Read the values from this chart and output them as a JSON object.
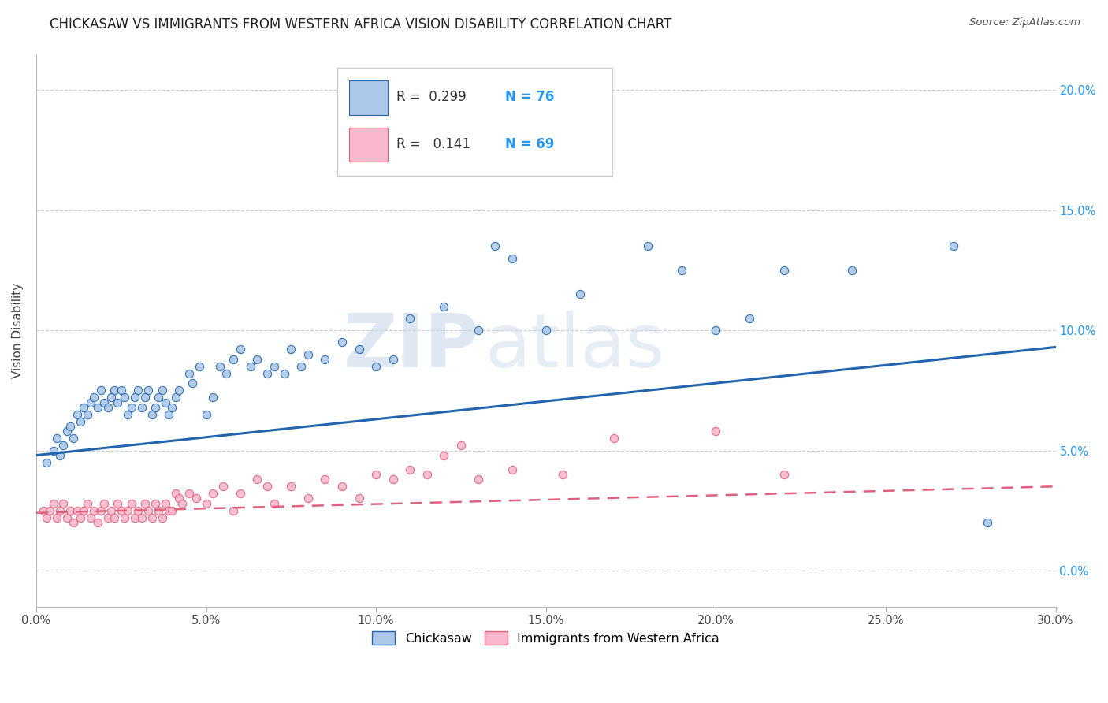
{
  "title": "CHICKASAW VS IMMIGRANTS FROM WESTERN AFRICA VISION DISABILITY CORRELATION CHART",
  "source": "Source: ZipAtlas.com",
  "ylabel": "Vision Disability",
  "xlabel_ticks": [
    "0.0%",
    "5.0%",
    "10.0%",
    "15.0%",
    "20.0%",
    "25.0%",
    "30.0%"
  ],
  "xlabel_vals": [
    0.0,
    0.05,
    0.1,
    0.15,
    0.2,
    0.25,
    0.3
  ],
  "ylabel_ticks": [
    "0.0%",
    "5.0%",
    "10.0%",
    "15.0%",
    "20.0%"
  ],
  "ylabel_vals": [
    0.0,
    0.05,
    0.1,
    0.15,
    0.2
  ],
  "xmin": 0.0,
  "xmax": 0.3,
  "ymin": -0.015,
  "ymax": 0.215,
  "legend1_label": "Chickasaw",
  "legend2_label": "Immigrants from Western Africa",
  "series1": {
    "name": "Chickasaw",
    "R": "0.299",
    "N": "76",
    "color": "#adc8e8",
    "line_color": "#2166ac",
    "scatter_x": [
      0.003,
      0.005,
      0.006,
      0.007,
      0.008,
      0.009,
      0.01,
      0.011,
      0.012,
      0.013,
      0.014,
      0.015,
      0.016,
      0.017,
      0.018,
      0.019,
      0.02,
      0.021,
      0.022,
      0.023,
      0.024,
      0.025,
      0.026,
      0.027,
      0.028,
      0.029,
      0.03,
      0.031,
      0.032,
      0.033,
      0.034,
      0.035,
      0.036,
      0.037,
      0.038,
      0.039,
      0.04,
      0.041,
      0.042,
      0.045,
      0.046,
      0.048,
      0.05,
      0.052,
      0.054,
      0.056,
      0.058,
      0.06,
      0.063,
      0.065,
      0.068,
      0.07,
      0.073,
      0.075,
      0.078,
      0.08,
      0.085,
      0.09,
      0.095,
      0.1,
      0.105,
      0.11,
      0.12,
      0.13,
      0.135,
      0.14,
      0.15,
      0.16,
      0.18,
      0.19,
      0.2,
      0.21,
      0.22,
      0.24,
      0.27,
      0.28
    ],
    "scatter_y": [
      0.045,
      0.05,
      0.055,
      0.048,
      0.052,
      0.058,
      0.06,
      0.055,
      0.065,
      0.062,
      0.068,
      0.065,
      0.07,
      0.072,
      0.068,
      0.075,
      0.07,
      0.068,
      0.072,
      0.075,
      0.07,
      0.075,
      0.072,
      0.065,
      0.068,
      0.072,
      0.075,
      0.068,
      0.072,
      0.075,
      0.065,
      0.068,
      0.072,
      0.075,
      0.07,
      0.065,
      0.068,
      0.072,
      0.075,
      0.082,
      0.078,
      0.085,
      0.065,
      0.072,
      0.085,
      0.082,
      0.088,
      0.092,
      0.085,
      0.088,
      0.082,
      0.085,
      0.082,
      0.092,
      0.085,
      0.09,
      0.088,
      0.095,
      0.092,
      0.085,
      0.088,
      0.105,
      0.11,
      0.1,
      0.135,
      0.13,
      0.1,
      0.115,
      0.135,
      0.125,
      0.1,
      0.105,
      0.125,
      0.125,
      0.135,
      0.02
    ],
    "trend_x": [
      0.0,
      0.3
    ],
    "trend_y": [
      0.048,
      0.093
    ]
  },
  "series2": {
    "name": "Immigrants from Western Africa",
    "R": "0.141",
    "N": "69",
    "color": "#f9b8cb",
    "line_color": "#e0607e",
    "scatter_x": [
      0.002,
      0.003,
      0.004,
      0.005,
      0.006,
      0.007,
      0.008,
      0.009,
      0.01,
      0.011,
      0.012,
      0.013,
      0.014,
      0.015,
      0.016,
      0.017,
      0.018,
      0.019,
      0.02,
      0.021,
      0.022,
      0.023,
      0.024,
      0.025,
      0.026,
      0.027,
      0.028,
      0.029,
      0.03,
      0.031,
      0.032,
      0.033,
      0.034,
      0.035,
      0.036,
      0.037,
      0.038,
      0.039,
      0.04,
      0.041,
      0.042,
      0.043,
      0.045,
      0.047,
      0.05,
      0.052,
      0.055,
      0.058,
      0.06,
      0.065,
      0.068,
      0.07,
      0.075,
      0.08,
      0.085,
      0.09,
      0.095,
      0.1,
      0.105,
      0.11,
      0.115,
      0.12,
      0.125,
      0.13,
      0.14,
      0.155,
      0.17,
      0.2,
      0.22
    ],
    "scatter_y": [
      0.025,
      0.022,
      0.025,
      0.028,
      0.022,
      0.025,
      0.028,
      0.022,
      0.025,
      0.02,
      0.025,
      0.022,
      0.025,
      0.028,
      0.022,
      0.025,
      0.02,
      0.025,
      0.028,
      0.022,
      0.025,
      0.022,
      0.028,
      0.025,
      0.022,
      0.025,
      0.028,
      0.022,
      0.025,
      0.022,
      0.028,
      0.025,
      0.022,
      0.028,
      0.025,
      0.022,
      0.028,
      0.025,
      0.025,
      0.032,
      0.03,
      0.028,
      0.032,
      0.03,
      0.028,
      0.032,
      0.035,
      0.025,
      0.032,
      0.038,
      0.035,
      0.028,
      0.035,
      0.03,
      0.038,
      0.035,
      0.03,
      0.04,
      0.038,
      0.042,
      0.04,
      0.048,
      0.052,
      0.038,
      0.042,
      0.04,
      0.055,
      0.058,
      0.04
    ],
    "trend_x": [
      0.0,
      0.3
    ],
    "trend_y": [
      0.024,
      0.035
    ]
  },
  "watermark_zip": "ZIP",
  "watermark_atlas": "atlas",
  "title_color": "#222222",
  "title_fontsize": 12,
  "axis_label_color": "#444444",
  "tick_color": "#2196F3",
  "grid_color": "#cccccc",
  "background_color": "#ffffff"
}
